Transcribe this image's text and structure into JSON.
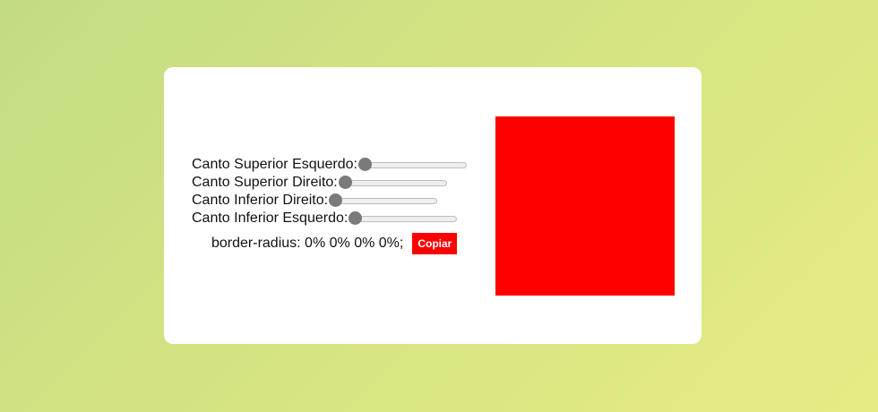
{
  "controls": {
    "top_left": {
      "label": "Canto Superior Esquerdo:",
      "value": 0,
      "min": 0,
      "max": 100
    },
    "top_right": {
      "label": "Canto Superior Direito:",
      "value": 0,
      "min": 0,
      "max": 100
    },
    "bottom_right": {
      "label": "Canto Inferior Direito:",
      "value": 0,
      "min": 0,
      "max": 100
    },
    "bottom_left": {
      "label": "Canto Inferior Esquerdo:",
      "value": 0,
      "min": 0,
      "max": 100
    }
  },
  "output": {
    "css_text": "border-radius: 0% 0% 0% 0%;",
    "copy_label": "Copiar"
  },
  "colors": {
    "preview_fill": "#ff0000",
    "button_bg": "#ff0000",
    "card_bg": "#ffffff"
  }
}
